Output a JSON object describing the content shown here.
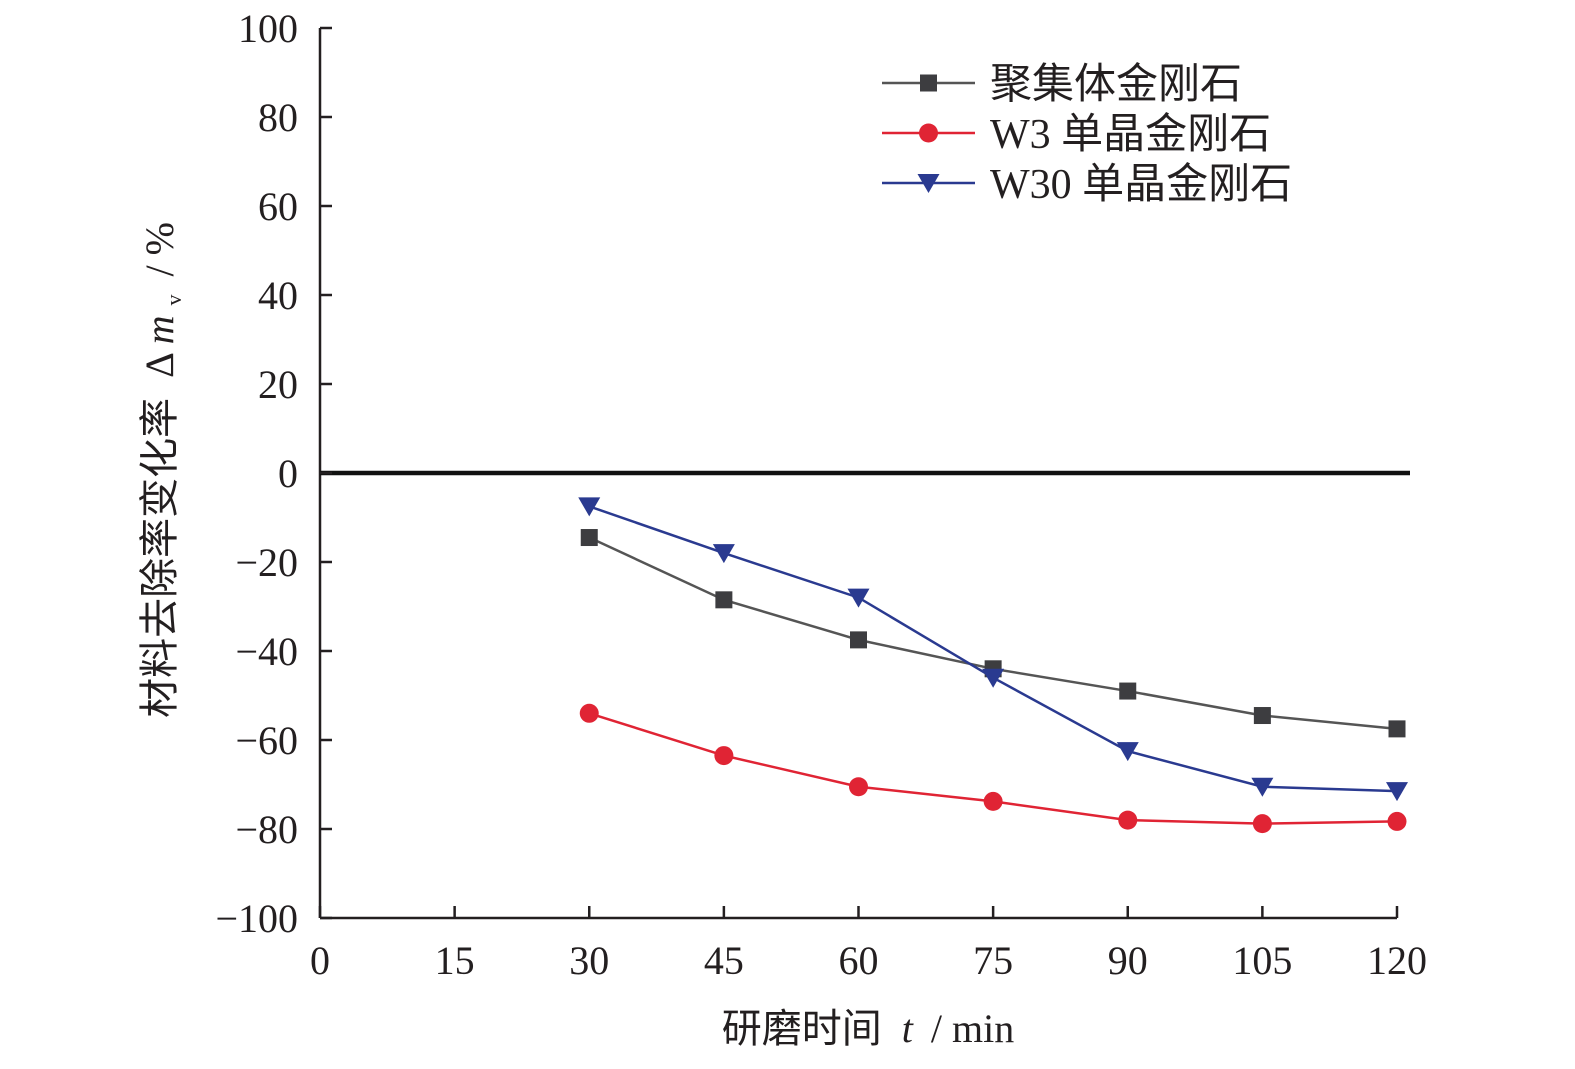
{
  "chart_data": {
    "type": "line",
    "xlabel": {
      "cjk": "研磨时间",
      "symbol": "t",
      "unit": "/ min"
    },
    "ylabel": {
      "cjk": "材料去除率变化率",
      "symbol_prefix": "Δ",
      "symbol": "m",
      "subscript": "v",
      "unit": "/ %"
    },
    "xlim": [
      0,
      120
    ],
    "ylim": [
      -100,
      100
    ],
    "x_ticks": [
      0,
      15,
      30,
      45,
      60,
      75,
      90,
      105,
      120
    ],
    "x_tick_labels": [
      "0",
      "15",
      "30",
      "45",
      "60",
      "75",
      "90",
      "105",
      "120"
    ],
    "y_ticks": [
      100,
      80,
      60,
      40,
      20,
      0,
      -20,
      -40,
      -60,
      -80,
      -100
    ],
    "y_tick_labels": [
      "100",
      "80",
      "60",
      "40",
      "20",
      "0",
      "−20",
      "−40",
      "−60",
      "−80",
      "−100"
    ],
    "grid": false,
    "zero_line": true,
    "legend_position": "top-right",
    "x": [
      30,
      45,
      60,
      75,
      90,
      105,
      120
    ],
    "series": [
      {
        "name": "聚集体金刚石",
        "marker": "square",
        "color": "#3d3d40",
        "line_color": "#555555",
        "values": [
          -14.5,
          -28.5,
          -37.5,
          -44,
          -49,
          -54.5,
          -57.5
        ]
      },
      {
        "name": "W3 单晶金刚石",
        "marker": "circle",
        "color": "#e02434",
        "line_color": "#e02434",
        "values": [
          -54,
          -63.5,
          -70.5,
          -73.8,
          -78,
          -78.8,
          -78.3
        ]
      },
      {
        "name": "W30 单晶金刚石",
        "marker": "triangle-down",
        "color": "#2a3a90",
        "line_color": "#2a3a90",
        "values": [
          -7.5,
          -18,
          -28,
          -46,
          -62.5,
          -70.5,
          -71.5
        ]
      }
    ]
  }
}
